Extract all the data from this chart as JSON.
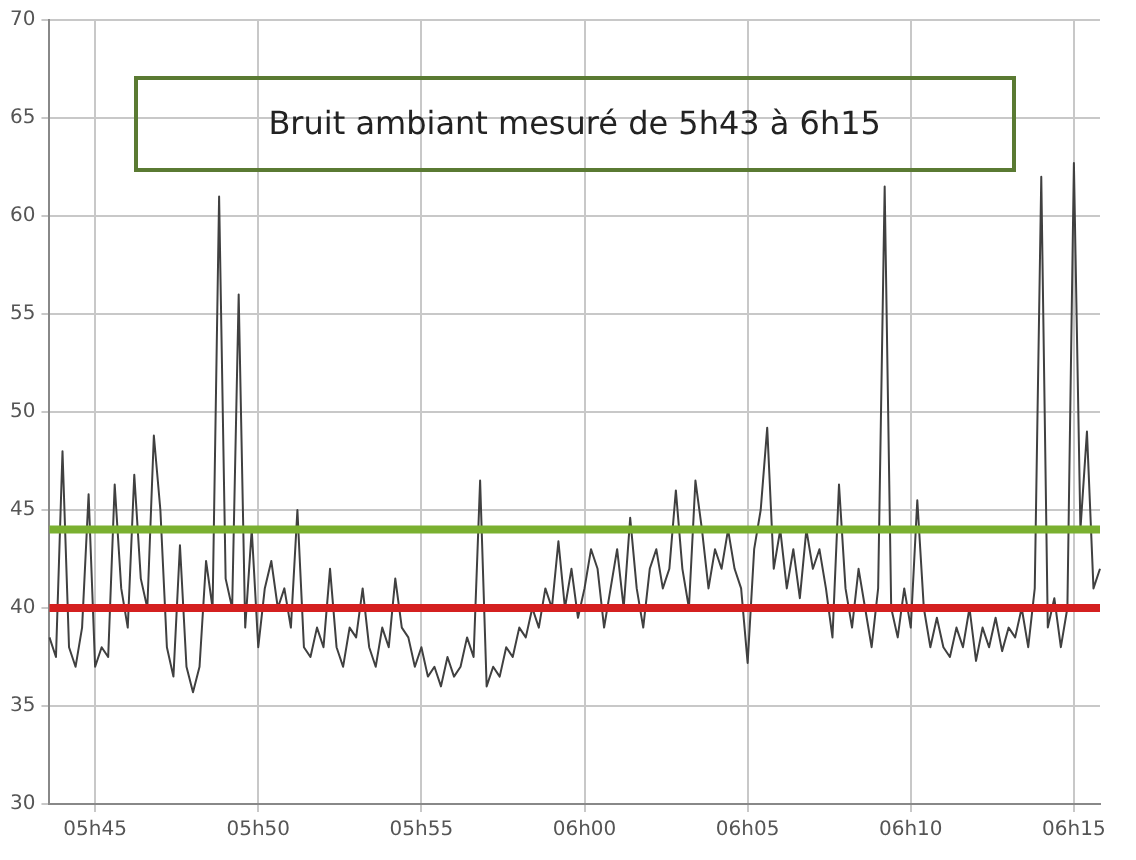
{
  "chart_data": {
    "type": "line",
    "title": "Bruit ambiant mesuré de 5h43 à 6h15",
    "marker": "none",
    "grid": true,
    "line_style": "solid",
    "categories": [
      null,
      null,
      null,
      null,
      null,
      null,
      null,
      "05h45",
      null,
      null,
      null,
      null,
      null,
      null,
      null,
      null,
      null,
      null,
      null,
      null,
      null,
      null,
      null,
      null,
      null,
      null,
      null,
      null,
      null,
      null,
      null,
      null,
      "05h50",
      null,
      null,
      null,
      null,
      null,
      null,
      null,
      null,
      null,
      null,
      null,
      null,
      null,
      null,
      null,
      null,
      null,
      null,
      null,
      null,
      null,
      null,
      null,
      null,
      "05h55",
      null,
      null,
      null,
      null,
      null,
      null,
      null,
      null,
      null,
      null,
      null,
      null,
      null,
      null,
      null,
      null,
      null,
      null,
      null,
      null,
      null,
      null,
      null,
      null,
      "06h00",
      null,
      null,
      null,
      null,
      null,
      null,
      null,
      null,
      null,
      null,
      null,
      null,
      null,
      null,
      null,
      null,
      null,
      null,
      null,
      null,
      null,
      null,
      null,
      null,
      "06h05",
      null,
      null,
      null,
      null,
      null,
      null,
      null,
      null,
      null,
      null,
      null,
      null,
      null,
      null,
      null,
      null,
      null,
      null,
      null,
      null,
      null,
      null,
      null,
      null,
      "06h10",
      null,
      null,
      null,
      null,
      null,
      null,
      null,
      null,
      null,
      null,
      null,
      null,
      null,
      null,
      null,
      null,
      null,
      null,
      null,
      null,
      null,
      null,
      null,
      null,
      "06h15",
      null,
      null,
      null,
      null
    ],
    "ylim": [
      30,
      70
    ],
    "yticks": [
      30,
      35,
      40,
      45,
      50,
      55,
      60,
      65,
      70
    ],
    "ref_lines": [
      {
        "axis": "y",
        "value": 44,
        "color": "#7ab030"
      },
      {
        "axis": "y",
        "value": 40,
        "color": "#d42020"
      }
    ],
    "series": [
      {
        "color": "#404040",
        "values": [
          38.5,
          37.5,
          48,
          38,
          37,
          39,
          45.8,
          37,
          38,
          37.5,
          46.3,
          41,
          39,
          46.8,
          41.5,
          40,
          48.8,
          45,
          38,
          36.5,
          43.2,
          37,
          35.7,
          37,
          42.4,
          40,
          61,
          41.5,
          40,
          56,
          39,
          44,
          38,
          41,
          42.4,
          40,
          41,
          39,
          45,
          38,
          37.5,
          39,
          38,
          42,
          38,
          37,
          39,
          38.5,
          41,
          38,
          37,
          39,
          38,
          41.5,
          39,
          38.5,
          37,
          38,
          36.5,
          37,
          36,
          37.5,
          36.5,
          37,
          38.5,
          37.5,
          46.5,
          36,
          37,
          36.5,
          38,
          37.5,
          39,
          38.5,
          40,
          39,
          41,
          40,
          43.4,
          40,
          42,
          39.5,
          41,
          43,
          42,
          39,
          41,
          43,
          40,
          44.6,
          41,
          39,
          42,
          43,
          41,
          42,
          46,
          42,
          40,
          46.5,
          44,
          41,
          43,
          42,
          44,
          42,
          41,
          37.2,
          43,
          45,
          49.2,
          42,
          44,
          41,
          43,
          40.5,
          44,
          42,
          43,
          41,
          38.5,
          46.3,
          41,
          39,
          42,
          40,
          38,
          41,
          61.5,
          40,
          38.5,
          41,
          39,
          45.5,
          40,
          38,
          39.5,
          38,
          37.5,
          39,
          38,
          40,
          37.3,
          39,
          38,
          39.5,
          37.8,
          39,
          38.5,
          40,
          38,
          41,
          62,
          39,
          40.5,
          38,
          40,
          62.7,
          44,
          49,
          41,
          42
        ]
      }
    ]
  }
}
